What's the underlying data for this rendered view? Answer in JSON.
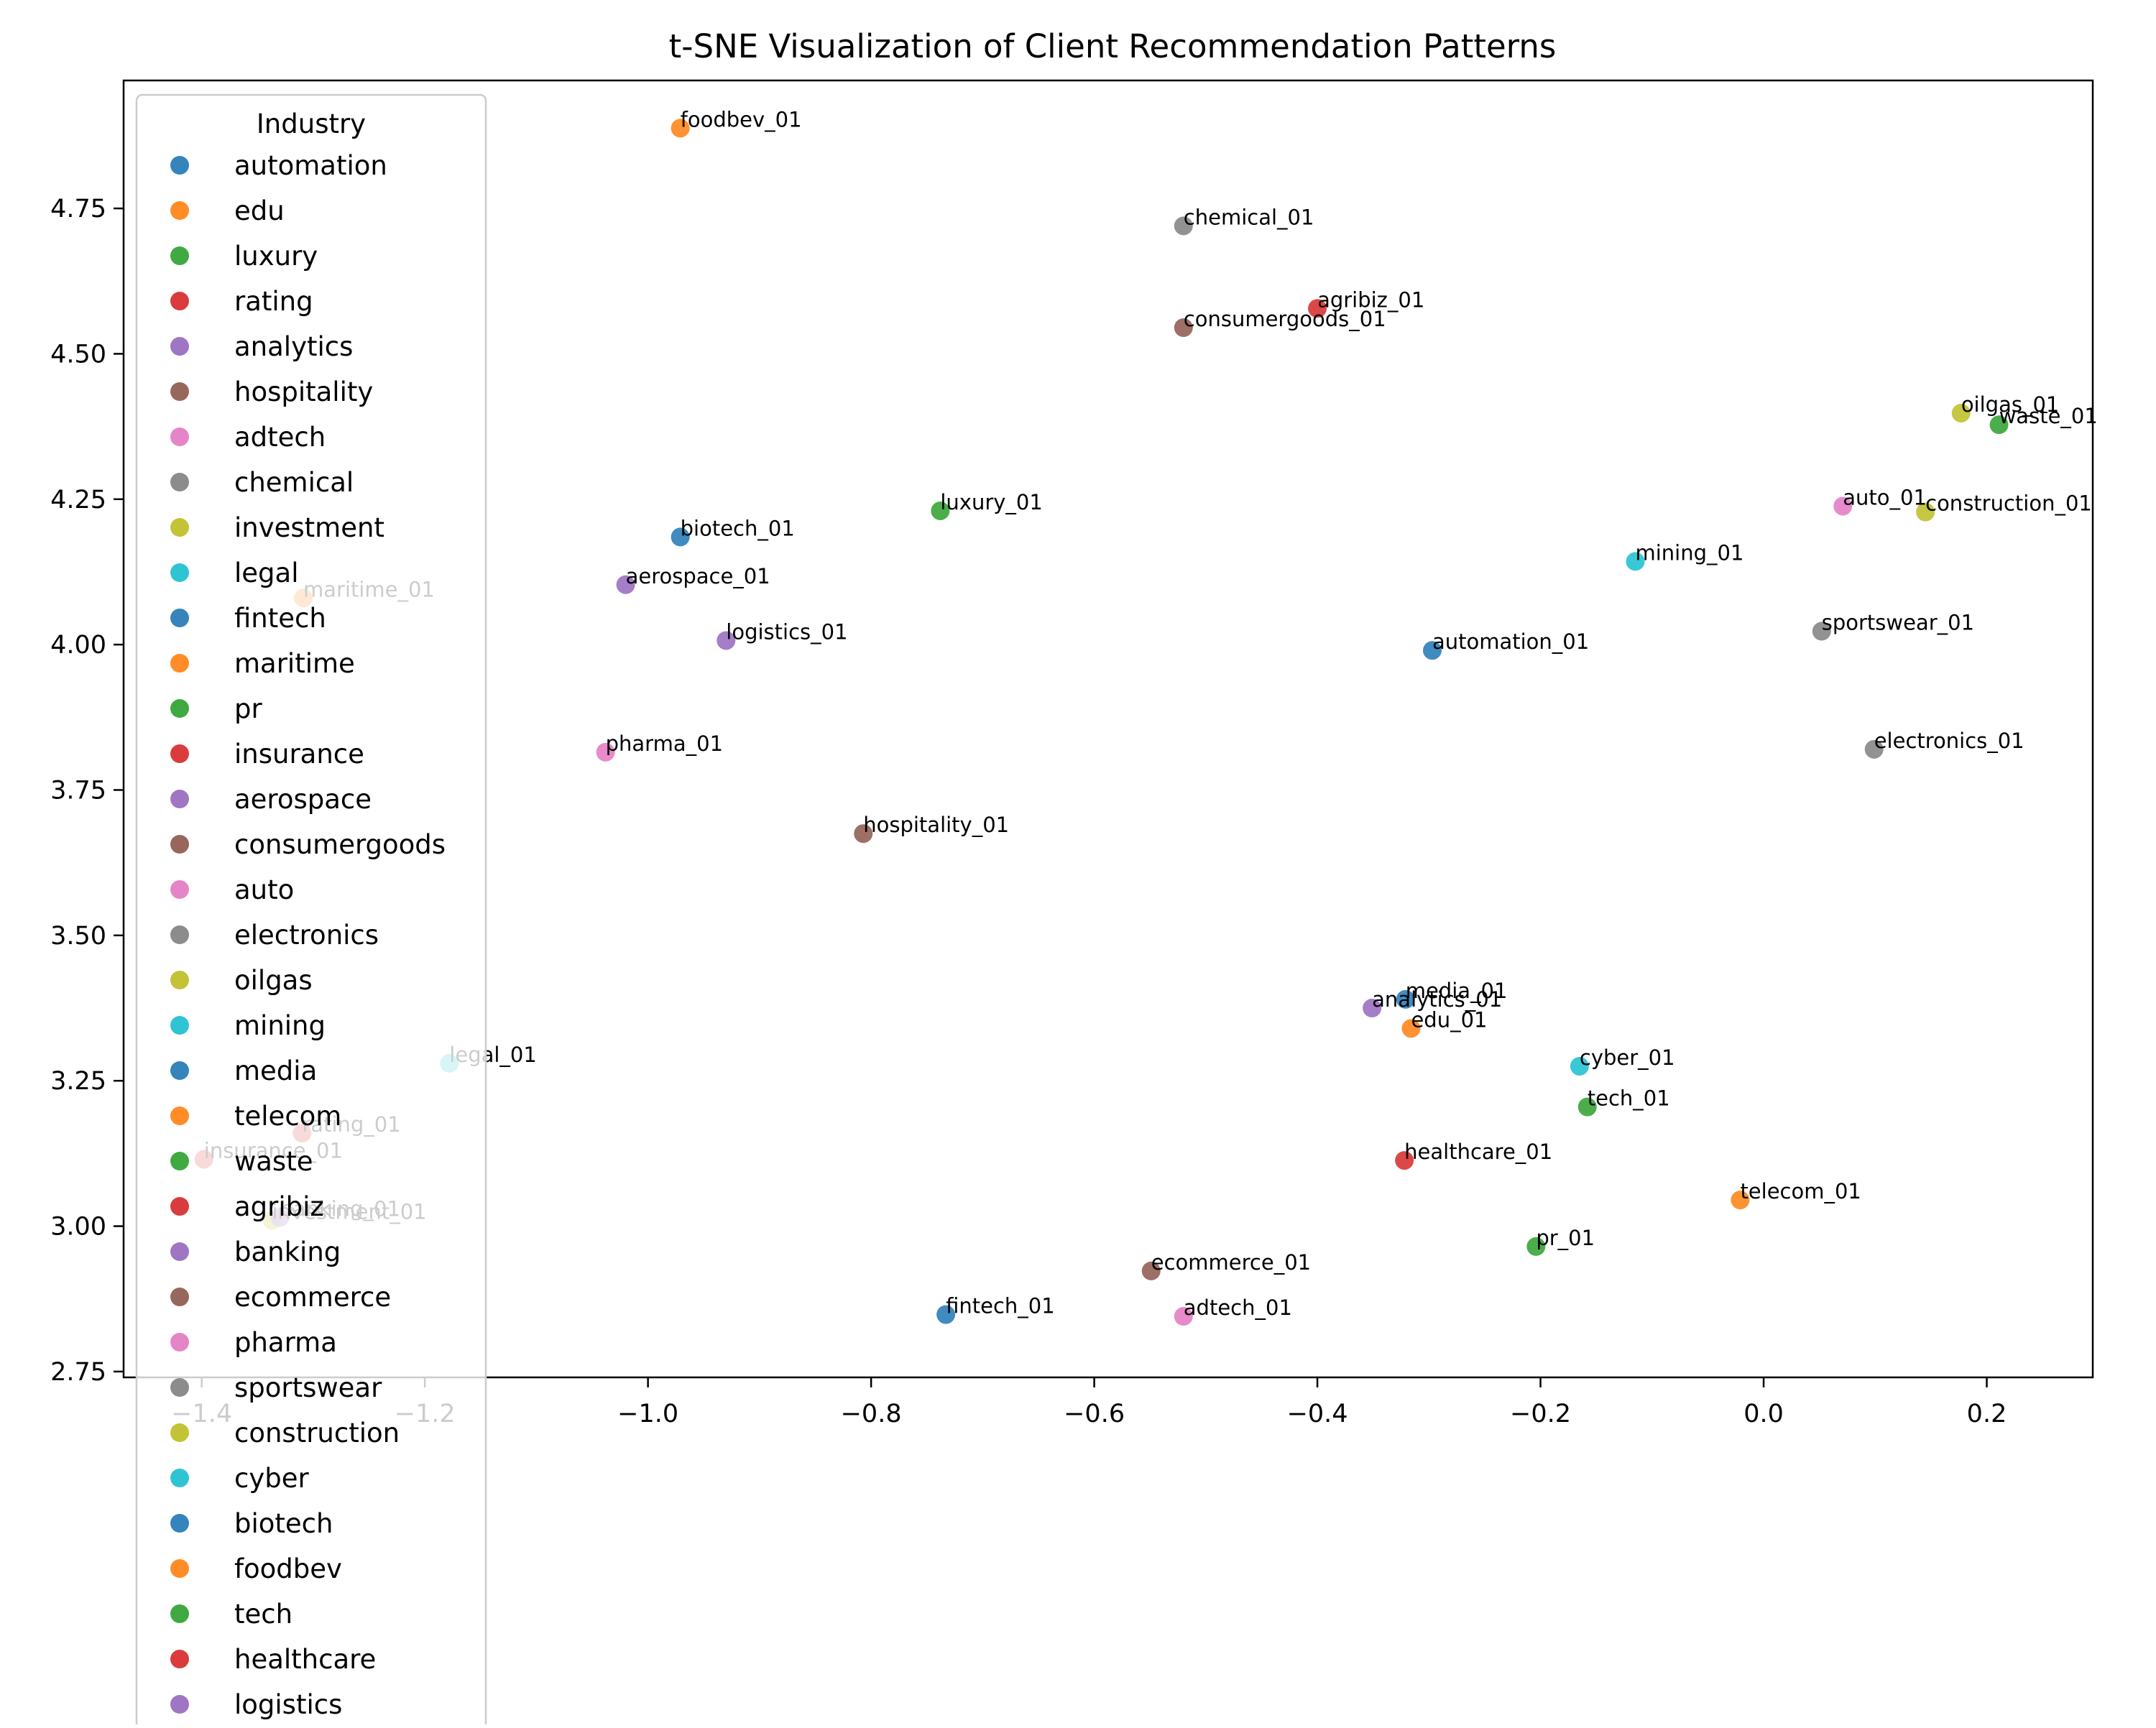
{
  "chart_data": {
    "type": "scatter",
    "title": "t-SNE Visualization of Client Recommendation Patterns",
    "xlabel": "",
    "ylabel": "",
    "xlim": [
      -1.47,
      0.295
    ],
    "ylim": [
      2.74,
      4.97
    ],
    "xticks": [
      -1.4,
      -1.2,
      -1.0,
      -0.8,
      -0.6,
      -0.4,
      -0.2,
      0.0,
      0.2
    ],
    "xtick_labels": [
      "−1.4",
      "−1.2",
      "−1.0",
      "−0.8",
      "−0.6",
      "−0.4",
      "−0.2",
      "0.0",
      "0.2"
    ],
    "yticks": [
      2.75,
      3.0,
      3.25,
      3.5,
      3.75,
      4.0,
      4.25,
      4.5,
      4.75
    ],
    "ytick_labels": [
      "2.75",
      "3.00",
      "3.25",
      "3.50",
      "3.75",
      "4.00",
      "4.25",
      "4.50",
      "4.75"
    ],
    "grid": false,
    "legend": {
      "title": "Industry",
      "placement": "upper-left",
      "entries": [
        {
          "name": "automation",
          "color": "#1f77b4"
        },
        {
          "name": "edu",
          "color": "#ff7f0e"
        },
        {
          "name": "luxury",
          "color": "#2ca02c"
        },
        {
          "name": "rating",
          "color": "#d62728"
        },
        {
          "name": "analytics",
          "color": "#9467bd"
        },
        {
          "name": "hospitality",
          "color": "#8c564b"
        },
        {
          "name": "adtech",
          "color": "#e377c2"
        },
        {
          "name": "chemical",
          "color": "#7f7f7f"
        },
        {
          "name": "investment",
          "color": "#bcbd22"
        },
        {
          "name": "legal",
          "color": "#17becf"
        },
        {
          "name": "fintech",
          "color": "#1f77b4"
        },
        {
          "name": "maritime",
          "color": "#ff7f0e"
        },
        {
          "name": "pr",
          "color": "#2ca02c"
        },
        {
          "name": "insurance",
          "color": "#d62728"
        },
        {
          "name": "aerospace",
          "color": "#9467bd"
        },
        {
          "name": "consumergoods",
          "color": "#8c564b"
        },
        {
          "name": "auto",
          "color": "#e377c2"
        },
        {
          "name": "electronics",
          "color": "#7f7f7f"
        },
        {
          "name": "oilgas",
          "color": "#bcbd22"
        },
        {
          "name": "mining",
          "color": "#17becf"
        },
        {
          "name": "media",
          "color": "#1f77b4"
        },
        {
          "name": "telecom",
          "color": "#ff7f0e"
        },
        {
          "name": "waste",
          "color": "#2ca02c"
        },
        {
          "name": "agribiz",
          "color": "#d62728"
        },
        {
          "name": "banking",
          "color": "#9467bd"
        },
        {
          "name": "ecommerce",
          "color": "#8c564b"
        },
        {
          "name": "pharma",
          "color": "#e377c2"
        },
        {
          "name": "sportswear",
          "color": "#7f7f7f"
        },
        {
          "name": "construction",
          "color": "#bcbd22"
        },
        {
          "name": "cyber",
          "color": "#17becf"
        },
        {
          "name": "biotech",
          "color": "#1f77b4"
        },
        {
          "name": "foodbev",
          "color": "#ff7f0e"
        },
        {
          "name": "tech",
          "color": "#2ca02c"
        },
        {
          "name": "healthcare",
          "color": "#d62728"
        },
        {
          "name": "logistics",
          "color": "#9467bd"
        }
      ]
    },
    "points": [
      {
        "label": "automation_01",
        "industry": "automation",
        "x": -0.297,
        "y": 3.99
      },
      {
        "label": "edu_01",
        "industry": "edu",
        "x": -0.316,
        "y": 3.34
      },
      {
        "label": "luxury_01",
        "industry": "luxury",
        "x": -0.738,
        "y": 4.23
      },
      {
        "label": "rating_01",
        "industry": "rating",
        "x": -1.31,
        "y": 3.16
      },
      {
        "label": "analytics_01",
        "industry": "analytics",
        "x": -0.351,
        "y": 3.375
      },
      {
        "label": "hospitality_01",
        "industry": "hospitality",
        "x": -0.807,
        "y": 3.675
      },
      {
        "label": "adtech_01",
        "industry": "adtech",
        "x": -0.52,
        "y": 2.845
      },
      {
        "label": "chemical_01",
        "industry": "chemical",
        "x": -0.52,
        "y": 4.72
      },
      {
        "label": "investment_01",
        "industry": "investment",
        "x": -1.337,
        "y": 3.01
      },
      {
        "label": "legal_01",
        "industry": "legal",
        "x": -1.178,
        "y": 3.28
      },
      {
        "label": "fintech_01",
        "industry": "fintech",
        "x": -0.733,
        "y": 2.848
      },
      {
        "label": "maritime_01",
        "industry": "maritime",
        "x": -1.309,
        "y": 4.08
      },
      {
        "label": "pr_01",
        "industry": "pr",
        "x": -0.204,
        "y": 2.965
      },
      {
        "label": "insurance_01",
        "industry": "insurance",
        "x": -1.398,
        "y": 3.115
      },
      {
        "label": "aerospace_01",
        "industry": "aerospace",
        "x": -1.02,
        "y": 4.103
      },
      {
        "label": "consumergoods_01",
        "industry": "consumergoods",
        "x": -0.52,
        "y": 4.545
      },
      {
        "label": "auto_01",
        "industry": "auto",
        "x": 0.071,
        "y": 4.238
      },
      {
        "label": "electronics_01",
        "industry": "electronics",
        "x": 0.099,
        "y": 3.82
      },
      {
        "label": "oilgas_01",
        "industry": "oilgas",
        "x": 0.177,
        "y": 4.398
      },
      {
        "label": "mining_01",
        "industry": "mining",
        "x": -0.115,
        "y": 4.143
      },
      {
        "label": "media_01",
        "industry": "media",
        "x": -0.321,
        "y": 3.39
      },
      {
        "label": "telecom_01",
        "industry": "telecom",
        "x": -0.021,
        "y": 3.045
      },
      {
        "label": "waste_01",
        "industry": "waste",
        "x": 0.211,
        "y": 4.378
      },
      {
        "label": "agribiz_01",
        "industry": "agribiz",
        "x": -0.4,
        "y": 4.578
      },
      {
        "label": "banking_01",
        "industry": "banking",
        "x": -1.33,
        "y": 3.015
      },
      {
        "label": "ecommerce_01",
        "industry": "ecommerce",
        "x": -0.549,
        "y": 2.923
      },
      {
        "label": "pharma_01",
        "industry": "pharma",
        "x": -1.038,
        "y": 3.815
      },
      {
        "label": "sportswear_01",
        "industry": "sportswear",
        "x": 0.052,
        "y": 4.023
      },
      {
        "label": "construction_01",
        "industry": "construction",
        "x": 0.145,
        "y": 4.228
      },
      {
        "label": "cyber_01",
        "industry": "cyber",
        "x": -0.165,
        "y": 3.275
      },
      {
        "label": "biotech_01",
        "industry": "biotech",
        "x": -0.971,
        "y": 4.185
      },
      {
        "label": "foodbev_01",
        "industry": "foodbev",
        "x": -0.971,
        "y": 4.888
      },
      {
        "label": "tech_01",
        "industry": "tech",
        "x": -0.158,
        "y": 3.205
      },
      {
        "label": "healthcare_01",
        "industry": "healthcare",
        "x": -0.322,
        "y": 3.113
      },
      {
        "label": "logistics_01",
        "industry": "logistics",
        "x": -0.93,
        "y": 4.007
      }
    ]
  }
}
